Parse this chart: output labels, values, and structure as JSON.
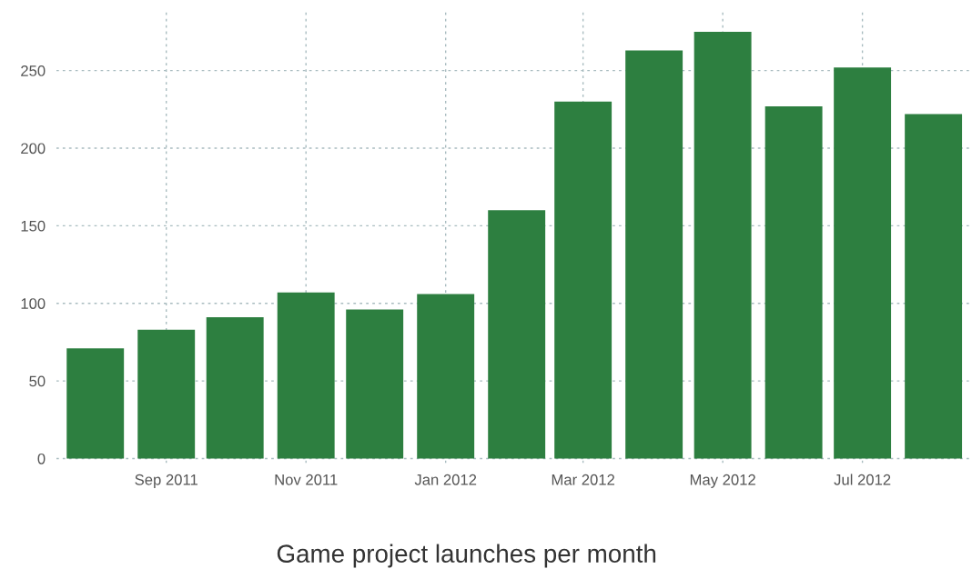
{
  "chart_data": {
    "type": "bar",
    "title": "Game project launches per month",
    "x": [
      "2011-08",
      "2011-09",
      "2011-10",
      "2011-11",
      "2011-12",
      "2012-01",
      "2012-02",
      "2012-03",
      "2012-04",
      "2012-05",
      "2012-06",
      "2012-07",
      "2012-08"
    ],
    "values": [
      71,
      83,
      91,
      107,
      96,
      106,
      160,
      230,
      263,
      275,
      227,
      252,
      222
    ],
    "color": "#2d7f40",
    "xlim": [
      "2011-07-15",
      "2012-08-17"
    ],
    "xticks": [
      {
        "value": "2011-09",
        "label": "Sep 2011"
      },
      {
        "value": "2011-11",
        "label": "Nov 2011"
      },
      {
        "value": "2012-01",
        "label": "Jan 2012"
      },
      {
        "value": "2012-03",
        "label": "Mar 2012"
      },
      {
        "value": "2012-05",
        "label": "May 2012"
      },
      {
        "value": "2012-07",
        "label": "Jul 2012"
      }
    ],
    "ylim": [
      -3,
      288
    ],
    "yticks": [
      0,
      50,
      100,
      150,
      200,
      250
    ],
    "grid": true,
    "legend": false
  }
}
